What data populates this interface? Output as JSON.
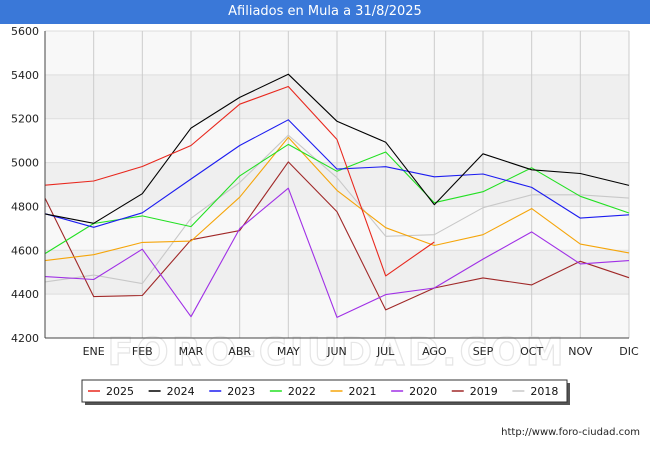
{
  "header": {
    "title": "Afiliados en Mula a 31/8/2025"
  },
  "footer": {
    "source": "http://www.foro-ciudad.com"
  },
  "watermark": "FORO-CIUDAD.COM",
  "chart_data": {
    "type": "line",
    "title": "Afiliados en Mula a 31/8/2025",
    "xlabel": "",
    "ylabel": "",
    "ylim": [
      4200,
      5600
    ],
    "yticks": [
      4200,
      4400,
      4600,
      4800,
      5000,
      5200,
      5400,
      5600
    ],
    "categories": [
      "",
      "ENE",
      "FEB",
      "MAR",
      "ABR",
      "MAY",
      "JUN",
      "JUL",
      "AGO",
      "SEP",
      "OCT",
      "NOV",
      "DIC"
    ],
    "legend_position": "bottom",
    "grid": true,
    "series": [
      {
        "name": "2025",
        "color": "#e8281e",
        "values": [
          4897,
          4916,
          4982,
          5078,
          5266,
          5347,
          5105,
          4483,
          4638,
          null,
          null,
          null,
          null
        ]
      },
      {
        "name": "2024",
        "color": "#000000",
        "values": [
          4766,
          4723,
          4858,
          5157,
          5297,
          5403,
          5188,
          5093,
          4808,
          5040,
          4967,
          4950,
          4896
        ]
      },
      {
        "name": "2023",
        "color": "#1c1cf0",
        "values": [
          4767,
          4705,
          4771,
          4925,
          5078,
          5195,
          4970,
          4981,
          4935,
          4948,
          4887,
          4747,
          4762
        ]
      },
      {
        "name": "2022",
        "color": "#22e022",
        "values": [
          4585,
          4722,
          4757,
          4708,
          4939,
          5083,
          4960,
          5048,
          4817,
          4867,
          4976,
          4846,
          4770
        ]
      },
      {
        "name": "2021",
        "color": "#f5a50a",
        "values": [
          4553,
          4580,
          4636,
          4642,
          4842,
          5115,
          4873,
          4703,
          4622,
          4671,
          4790,
          4628,
          4588
        ]
      },
      {
        "name": "2020",
        "color": "#a030e6",
        "values": [
          4480,
          4467,
          4605,
          4297,
          4699,
          4883,
          4294,
          4398,
          4428,
          4560,
          4684,
          4538,
          4553
        ]
      },
      {
        "name": "2019",
        "color": "#a02828",
        "values": [
          4838,
          4389,
          4394,
          4648,
          4690,
          5003,
          4776,
          4328,
          4428,
          4474,
          4442,
          4550,
          4475
        ]
      },
      {
        "name": "2018",
        "color": "#c8c8c8",
        "values": [
          4456,
          4487,
          4448,
          4746,
          4909,
          5125,
          4931,
          4664,
          4671,
          4794,
          4853,
          4853,
          4838
        ]
      }
    ]
  }
}
